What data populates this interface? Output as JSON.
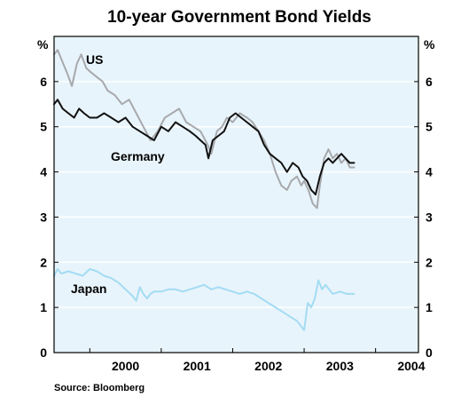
{
  "chart_data": {
    "type": "line",
    "title": "10-year Government Bond Yields",
    "unit_left": "%",
    "unit_right": "%",
    "ylim": [
      0,
      7
    ],
    "yticks": [
      "0",
      "1",
      "2",
      "3",
      "4",
      "5",
      "6"
    ],
    "xlim": [
      1999.5,
      2004.6
    ],
    "xticks": [
      {
        "label": "2000",
        "x": 2000.0
      },
      {
        "label": "2001",
        "x": 2001.0
      },
      {
        "label": "2002",
        "x": 2002.0
      },
      {
        "label": "2003",
        "x": 2003.0
      },
      {
        "label": "2004",
        "x": 2004.0
      }
    ],
    "grid": true,
    "source": "Source: Bloomberg",
    "series": [
      {
        "name": "US",
        "color": "#a7a9ac",
        "x": [
          1999.5,
          1999.55,
          1999.6,
          1999.68,
          1999.75,
          1999.82,
          1999.88,
          1999.95,
          2000.02,
          2000.1,
          2000.18,
          2000.25,
          2000.35,
          2000.45,
          2000.55,
          2000.65,
          2000.75,
          2000.85,
          2000.95,
          2001.05,
          2001.15,
          2001.25,
          2001.35,
          2001.45,
          2001.55,
          2001.65,
          2001.7,
          2001.78,
          2001.85,
          2001.92,
          2002.0,
          2002.1,
          2002.2,
          2002.28,
          2002.36,
          2002.44,
          2002.52,
          2002.6,
          2002.68,
          2002.76,
          2002.82,
          2002.9,
          2002.96,
          2003.0,
          2003.06,
          2003.12,
          2003.18,
          2003.22,
          2003.28,
          2003.34,
          2003.4,
          2003.46,
          2003.52,
          2003.58,
          2003.64,
          2003.7
        ],
        "values": [
          6.6,
          6.7,
          6.5,
          6.2,
          5.9,
          6.4,
          6.6,
          6.3,
          6.2,
          6.1,
          6.0,
          5.8,
          5.7,
          5.5,
          5.6,
          5.3,
          5.0,
          4.7,
          4.9,
          5.2,
          5.3,
          5.4,
          5.1,
          5.0,
          4.9,
          4.6,
          4.4,
          4.9,
          5.0,
          5.2,
          5.1,
          5.3,
          5.2,
          5.1,
          4.9,
          4.7,
          4.4,
          4.0,
          3.7,
          3.6,
          3.8,
          3.9,
          3.7,
          3.8,
          3.6,
          3.3,
          3.2,
          3.7,
          4.3,
          4.5,
          4.3,
          4.4,
          4.2,
          4.3,
          4.1,
          4.1
        ]
      },
      {
        "name": "Germany",
        "color": "#111111",
        "x": [
          1999.5,
          1999.55,
          1999.62,
          1999.7,
          1999.78,
          1999.85,
          1999.92,
          2000.0,
          2000.1,
          2000.2,
          2000.3,
          2000.4,
          2000.5,
          2000.6,
          2000.7,
          2000.8,
          2000.9,
          2001.0,
          2001.1,
          2001.2,
          2001.3,
          2001.4,
          2001.48,
          2001.55,
          2001.62,
          2001.66,
          2001.72,
          2001.8,
          2001.88,
          2001.96,
          2002.04,
          2002.12,
          2002.2,
          2002.28,
          2002.36,
          2002.44,
          2002.52,
          2002.6,
          2002.68,
          2002.76,
          2002.84,
          2002.92,
          2002.98,
          2003.04,
          2003.1,
          2003.16,
          2003.22,
          2003.28,
          2003.34,
          2003.4,
          2003.46,
          2003.52,
          2003.58,
          2003.64,
          2003.7
        ],
        "values": [
          5.5,
          5.6,
          5.4,
          5.3,
          5.2,
          5.4,
          5.3,
          5.2,
          5.2,
          5.3,
          5.2,
          5.1,
          5.2,
          5.0,
          4.9,
          4.8,
          4.7,
          5.0,
          4.9,
          5.1,
          5.0,
          4.9,
          4.8,
          4.7,
          4.6,
          4.3,
          4.7,
          4.8,
          4.9,
          5.2,
          5.3,
          5.2,
          5.1,
          5.0,
          4.9,
          4.6,
          4.4,
          4.3,
          4.2,
          4.0,
          4.2,
          4.1,
          3.9,
          3.8,
          3.6,
          3.5,
          3.9,
          4.2,
          4.3,
          4.2,
          4.3,
          4.4,
          4.3,
          4.2,
          4.2
        ]
      },
      {
        "name": "Japan",
        "color": "#a3dcf3",
        "x": [
          1999.5,
          1999.55,
          1999.6,
          1999.7,
          1999.8,
          1999.9,
          2000.0,
          2000.1,
          2000.2,
          2000.3,
          2000.4,
          2000.5,
          2000.6,
          2000.65,
          2000.7,
          2000.75,
          2000.8,
          2000.85,
          2000.9,
          2001.0,
          2001.1,
          2001.2,
          2001.3,
          2001.4,
          2001.5,
          2001.6,
          2001.7,
          2001.8,
          2001.9,
          2002.0,
          2002.1,
          2002.2,
          2002.3,
          2002.4,
          2002.5,
          2002.6,
          2002.7,
          2002.8,
          2002.9,
          2002.95,
          2003.0,
          2003.05,
          2003.1,
          2003.15,
          2003.2,
          2003.25,
          2003.3,
          2003.4,
          2003.5,
          2003.6,
          2003.7
        ],
        "values": [
          1.7,
          1.85,
          1.75,
          1.8,
          1.75,
          1.7,
          1.85,
          1.8,
          1.7,
          1.65,
          1.55,
          1.4,
          1.25,
          1.15,
          1.45,
          1.3,
          1.2,
          1.3,
          1.35,
          1.35,
          1.4,
          1.4,
          1.35,
          1.4,
          1.45,
          1.5,
          1.4,
          1.45,
          1.4,
          1.35,
          1.3,
          1.35,
          1.3,
          1.2,
          1.1,
          1.0,
          0.9,
          0.8,
          0.7,
          0.6,
          0.5,
          1.1,
          1.0,
          1.2,
          1.6,
          1.4,
          1.5,
          1.3,
          1.35,
          1.3,
          1.3
        ]
      }
    ],
    "series_labels": [
      {
        "text": "US",
        "series": "US"
      },
      {
        "text": "Germany",
        "series": "Germany"
      },
      {
        "text": "Japan",
        "series": "Japan"
      }
    ]
  }
}
